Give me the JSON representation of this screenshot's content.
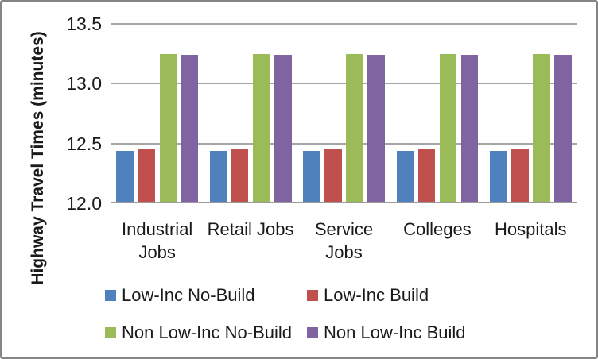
{
  "chart_data": {
    "type": "bar",
    "title": "",
    "ylabel": "Highway Travel Times (minutes)",
    "xlabel": "",
    "categories": [
      "Industrial Jobs",
      "Retail Jobs",
      "Service Jobs",
      "Colleges",
      "Hospitals"
    ],
    "category_labels_display": [
      "Industrial\nJobs",
      "Retail Jobs",
      "Service\nJobs",
      "Colleges",
      "Hospitals"
    ],
    "series": [
      {
        "name": "Low-Inc No-Build",
        "color": "#4F81BD",
        "values": [
          12.44,
          12.44,
          12.44,
          12.44,
          12.44
        ]
      },
      {
        "name": "Low-Inc Build",
        "color": "#C0504D",
        "values": [
          12.45,
          12.45,
          12.45,
          12.45,
          12.45
        ]
      },
      {
        "name": "Non Low-Inc No-Build",
        "color": "#9BBB59",
        "values": [
          13.25,
          13.25,
          13.25,
          13.25,
          13.25
        ]
      },
      {
        "name": "Non Low-Inc Build",
        "color": "#8064A2",
        "values": [
          13.24,
          13.24,
          13.24,
          13.24,
          13.24
        ]
      }
    ],
    "ylim": [
      12.0,
      13.5
    ],
    "yticks": [
      "12.0",
      "12.5",
      "13.0",
      "13.5"
    ],
    "grid": true,
    "legend_position": "bottom",
    "colors": {
      "gridline": "#A6A6A6",
      "axis_line": "#9B9B9B",
      "text": "#1A1A1A",
      "border": "#848484",
      "background": "#FFFFFF"
    }
  }
}
